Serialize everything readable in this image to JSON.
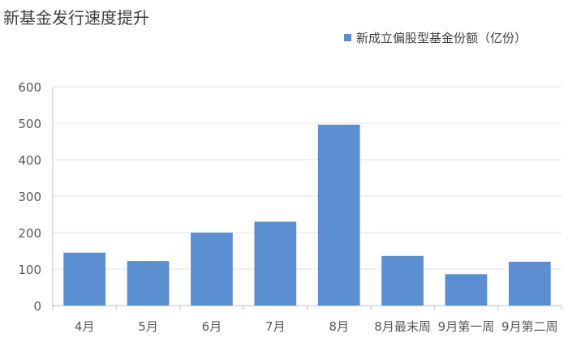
{
  "chart_data": {
    "type": "bar",
    "title": "新基金发行速度提升",
    "categories": [
      "4月",
      "5月",
      "6月",
      "7月",
      "8月",
      "8月最末周",
      "9月第一周",
      "9月第二周"
    ],
    "series": [
      {
        "name": "新成立偏股型基金份额（亿份）",
        "values": [
          145,
          122,
          200,
          230,
          496,
          136,
          86,
          120
        ],
        "color": "#5b8fd1"
      }
    ],
    "ylim": [
      0,
      600
    ],
    "yticks": [
      0,
      100,
      200,
      300,
      400,
      500,
      600
    ],
    "xlabel": "",
    "ylabel": "",
    "grid": true,
    "legend_position": "top-right"
  }
}
